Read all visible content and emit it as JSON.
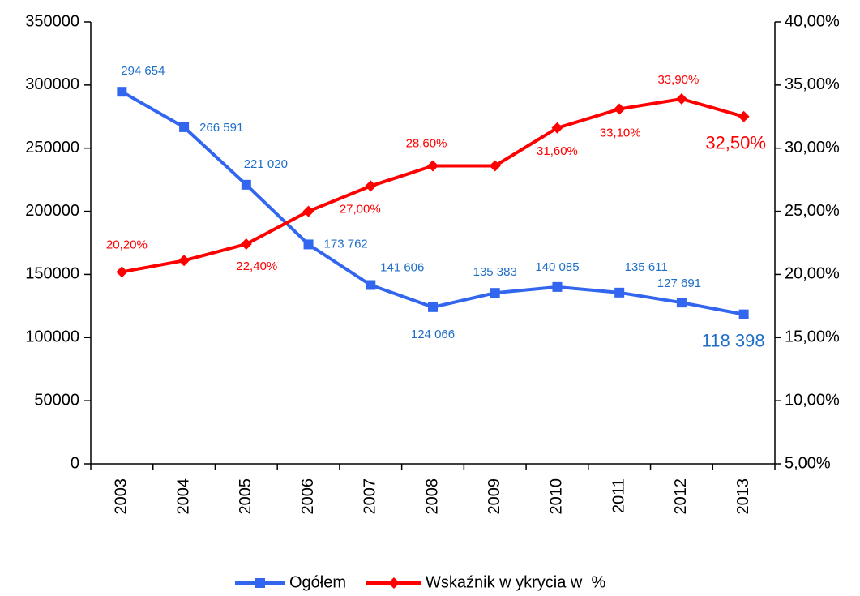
{
  "chart_data": {
    "type": "line",
    "categories": [
      "2003",
      "2004",
      "2005",
      "2006",
      "2007",
      "2008",
      "2009",
      "2010",
      "2011",
      "2012",
      "2013"
    ],
    "series": [
      {
        "name": "Ogółem",
        "color": "#3366ee",
        "values": [
          294654,
          266591,
          221020,
          173762,
          141606,
          124066,
          135383,
          140085,
          135611,
          127691,
          118398
        ],
        "value_labels": [
          "294 654",
          "266 591",
          "221 020",
          "173 762",
          "141 606",
          "124 066",
          "135 383",
          "140 085",
          "135 611",
          "127 691",
          "118 398"
        ]
      },
      {
        "name": "Wskaźnik w ykrycia w  %",
        "color": "#ff0000",
        "axis": "y2",
        "values": [
          20.2,
          21.1,
          22.4,
          25.0,
          27.0,
          28.6,
          28.6,
          31.6,
          33.1,
          33.9,
          32.5
        ],
        "value_labels": [
          "20,20%",
          null,
          "22,40%",
          null,
          "27,00%",
          "28,60%",
          null,
          "31,60%",
          "33,10%",
          "33,90%",
          "32,50%"
        ]
      }
    ],
    "ylim": [
      0,
      350000
    ],
    "yticks": [
      0,
      50000,
      100000,
      150000,
      200000,
      250000,
      300000,
      350000
    ],
    "y2lim": [
      5,
      40
    ],
    "y2ticks": [
      {
        "value": 5,
        "label": "5,00%"
      },
      {
        "value": 10,
        "label": "10,00%"
      },
      {
        "value": 15,
        "label": "15,00%"
      },
      {
        "value": 20,
        "label": "20,00%"
      },
      {
        "value": 25,
        "label": "25,00%"
      },
      {
        "value": 30,
        "label": "30,00%"
      },
      {
        "value": 35,
        "label": "35,00%"
      },
      {
        "value": 40,
        "label": "40,00%"
      }
    ],
    "grid": false,
    "legend": "bottom"
  }
}
